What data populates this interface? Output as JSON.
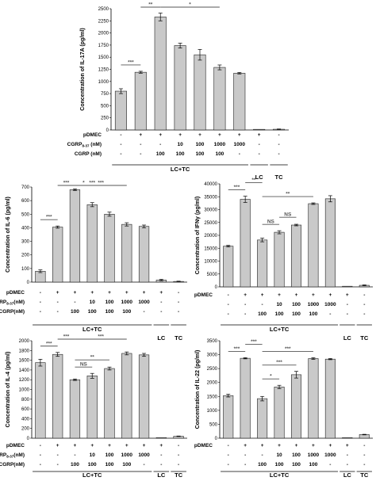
{
  "chart_data": [
    {
      "id": "il17a",
      "type": "bar",
      "ylabel": "Concentration of IL-17A (pg/ml)",
      "ylim": [
        0,
        2500
      ],
      "yticks": [
        0,
        250,
        500,
        750,
        1000,
        1250,
        1500,
        1750,
        2000,
        2250,
        2500
      ],
      "values": [
        800,
        1190,
        2330,
        1740,
        1550,
        1290,
        1170,
        5,
        15
      ],
      "errors": [
        50,
        20,
        80,
        50,
        110,
        50,
        15,
        0,
        5
      ],
      "conditions": [
        {
          "label": "pDMEC",
          "cells": [
            "-",
            "+",
            "+",
            "+",
            "+",
            "+",
            "+",
            "+",
            "-"
          ]
        },
        {
          "label": "CGRP8-37 (nM)",
          "label_main": "CGRP",
          "label_sub": "8-37",
          "label_suffix": " (nM)",
          "cells": [
            "-",
            "-",
            "-",
            "10",
            "100",
            "1000",
            "1000",
            "-",
            "-"
          ]
        },
        {
          "label": "CGRP (nM)",
          "cells": [
            "-",
            "-",
            "100",
            "100",
            "100",
            "100",
            "-",
            "-",
            "-"
          ]
        }
      ],
      "groups": [
        "LC+TC",
        "LC",
        "TC"
      ],
      "significance": [
        {
          "from": 0,
          "to": 1,
          "label": "***"
        },
        {
          "from": 1,
          "to": 2,
          "label": "**"
        },
        {
          "from": 2,
          "to": 5,
          "label": "*"
        }
      ]
    },
    {
      "id": "il6",
      "type": "bar",
      "ylabel": "Concentration of IL-6 (pg/ml)",
      "ylim": [
        0,
        700
      ],
      "yticks": [
        0,
        100,
        200,
        300,
        400,
        500,
        600,
        700
      ],
      "values": [
        80,
        405,
        680,
        570,
        500,
        425,
        410,
        15,
        5
      ],
      "errors": [
        10,
        8,
        6,
        15,
        15,
        12,
        10,
        5,
        2
      ],
      "conditions": [
        {
          "label": "pDMEC",
          "cells": [
            "-",
            "+",
            "+",
            "+",
            "+",
            "+",
            "+",
            "+",
            "-"
          ]
        },
        {
          "label": "CGRP8-37(nM)",
          "label_main": "CGRP",
          "label_sub": "8-37",
          "label_suffix": "(nM)",
          "cells": [
            "-",
            "-",
            "-",
            "10",
            "100",
            "1000",
            "1000",
            "-",
            "-"
          ]
        },
        {
          "label": "CGRP(nM)",
          "cells": [
            "-",
            "-",
            "100",
            "100",
            "100",
            "100",
            "-",
            "-",
            "-"
          ]
        }
      ],
      "groups": [
        "LC+TC",
        "LC",
        "TC"
      ],
      "significance": [
        {
          "from": 0,
          "to": 1,
          "label": "***"
        },
        {
          "from": 1,
          "to": 2,
          "label": "***"
        },
        {
          "from": 2,
          "to": 3,
          "label": "*"
        },
        {
          "from": 2,
          "to": 4,
          "label": "***"
        },
        {
          "from": 2,
          "to": 5,
          "label": "***"
        }
      ]
    },
    {
      "id": "ifng",
      "type": "bar",
      "ylabel": "Concentration of IFNγ (pg/ml)",
      "ylim": [
        0,
        40000
      ],
      "yticks": [
        0,
        5000,
        10000,
        15000,
        20000,
        25000,
        30000,
        35000,
        40000
      ],
      "values": [
        15800,
        34000,
        18200,
        21200,
        24000,
        32300,
        34200,
        50,
        600
      ],
      "errors": [
        300,
        1200,
        700,
        600,
        300,
        300,
        1200,
        0,
        150
      ],
      "conditions": [
        {
          "label": "pDMEC",
          "cells": [
            "-",
            "+",
            "+",
            "+",
            "+",
            "+",
            "+",
            "+",
            "-"
          ]
        },
        {
          "label": "",
          "cells": [
            "-",
            "-",
            "-",
            "10",
            "100",
            "1000",
            "1000",
            "-",
            "-"
          ]
        },
        {
          "label": "",
          "cells": [
            "-",
            "-",
            "100",
            "100",
            "100",
            "100",
            "-",
            "-",
            "-"
          ]
        }
      ],
      "groups": [
        "LC+TC",
        "LC",
        "TC"
      ],
      "significance": [
        {
          "from": 0,
          "to": 1,
          "label": "***"
        },
        {
          "from": 1,
          "to": 2,
          "label": "**"
        },
        {
          "from": 2,
          "to": 5,
          "label": "**"
        },
        {
          "from": 2,
          "to": 3,
          "label": "NS"
        },
        {
          "from": 3,
          "to": 4,
          "label": "NS"
        }
      ]
    },
    {
      "id": "il4",
      "type": "bar",
      "ylabel": "Concentration of IL-4 (pg/ml)",
      "ylim": [
        0,
        2000
      ],
      "yticks": [
        0,
        200,
        400,
        600,
        800,
        1000,
        1200,
        1400,
        1600,
        1800,
        2000
      ],
      "values": [
        1550,
        1720,
        1200,
        1280,
        1430,
        1740,
        1710,
        0,
        40
      ],
      "errors": [
        70,
        40,
        15,
        50,
        30,
        30,
        30,
        0,
        5
      ],
      "conditions": [
        {
          "label": "pDMEC",
          "cells": [
            "-",
            "+",
            "+",
            "+",
            "+",
            "+",
            "+",
            "+",
            "-"
          ]
        },
        {
          "label": "CGRP8-37(nM)",
          "label_main": "CGRP",
          "label_sub": "8-37",
          "label_suffix": "(nM)",
          "cells": [
            "-",
            "-",
            "-",
            "10",
            "100",
            "1000",
            "1000",
            "-",
            "-"
          ]
        },
        {
          "label": "CGRP(nM)",
          "cells": [
            "-",
            "-",
            "100",
            "100",
            "100",
            "100",
            "-",
            "-",
            "-"
          ]
        }
      ],
      "groups": [
        "LC+TC",
        "LC",
        "TC"
      ],
      "significance": [
        {
          "from": 0,
          "to": 1,
          "label": "***"
        },
        {
          "from": 1,
          "to": 2,
          "label": "***"
        },
        {
          "from": 2,
          "to": 3,
          "label": "NS"
        },
        {
          "from": 2,
          "to": 4,
          "label": "**"
        },
        {
          "from": 2,
          "to": 5,
          "label": "***"
        }
      ]
    },
    {
      "id": "il22",
      "type": "bar",
      "ylabel": "Concentration of IL-22 (pg/ml)",
      "ylim": [
        0,
        3500
      ],
      "yticks": [
        0,
        500,
        1000,
        1500,
        2000,
        2500,
        3000,
        3500
      ],
      "values": [
        1530,
        2870,
        1420,
        1840,
        2280,
        2860,
        2840,
        0,
        130
      ],
      "errors": [
        50,
        20,
        80,
        60,
        120,
        30,
        20,
        0,
        10
      ],
      "conditions": [
        {
          "label": "pDMEC",
          "cells": [
            "-",
            "+",
            "+",
            "+",
            "+",
            "+",
            "+",
            "+",
            "-"
          ]
        },
        {
          "label": "",
          "cells": [
            "-",
            "-",
            "-",
            "10",
            "100",
            "1000",
            "1000",
            "-",
            "-"
          ]
        },
        {
          "label": "",
          "cells": [
            "-",
            "-",
            "100",
            "100",
            "100",
            "100",
            "-",
            "-",
            "-"
          ]
        }
      ],
      "groups": [
        "LC+TC",
        "LC",
        "TC"
      ],
      "significance": [
        {
          "from": 0,
          "to": 1,
          "label": "***"
        },
        {
          "from": 1,
          "to": 2,
          "label": "***"
        },
        {
          "from": 2,
          "to": 3,
          "label": "*"
        },
        {
          "from": 2,
          "to": 4,
          "label": "***"
        },
        {
          "from": 2,
          "to": 5,
          "label": "***"
        }
      ]
    }
  ]
}
